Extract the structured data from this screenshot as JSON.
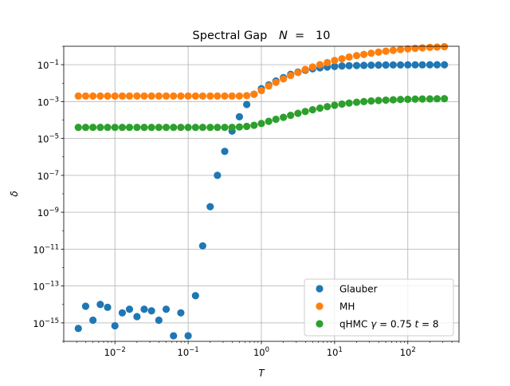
{
  "chart_data": {
    "type": "scatter",
    "title_prefix": "Spectral Gap",
    "title_var": "N",
    "title_eq": " =  ",
    "title_value": "10",
    "xlabel": "T",
    "ylabel": "δ",
    "x_scale": "log",
    "y_scale": "log",
    "xlim": [
      0.002,
      500
    ],
    "ylim": [
      1e-16,
      1
    ],
    "grid": true,
    "legend_position": "lower right",
    "x_ticks": [
      {
        "value": 0.01,
        "base": "10",
        "exp": "−2"
      },
      {
        "value": 0.1,
        "base": "10",
        "exp": "−1"
      },
      {
        "value": 1,
        "base": "10",
        "exp": "0"
      },
      {
        "value": 10,
        "base": "10",
        "exp": "1"
      },
      {
        "value": 100,
        "base": "10",
        "exp": "2"
      }
    ],
    "y_ticks": [
      {
        "value": 1e-15,
        "base": "10",
        "exp": "−15"
      },
      {
        "value": 1e-13,
        "base": "10",
        "exp": "−13"
      },
      {
        "value": 1e-11,
        "base": "10",
        "exp": "−11"
      },
      {
        "value": 1e-09,
        "base": "10",
        "exp": "−9"
      },
      {
        "value": 1e-07,
        "base": "10",
        "exp": "−7"
      },
      {
        "value": 1e-05,
        "base": "10",
        "exp": "−5"
      },
      {
        "value": 0.001,
        "base": "10",
        "exp": "−3"
      },
      {
        "value": 0.1,
        "base": "10",
        "exp": "−1"
      }
    ],
    "series": [
      {
        "name": "Glauber",
        "label_parts": [
          {
            "t": "Glauber",
            "i": false
          }
        ],
        "color": "#1f77b4",
        "points": [
          [
            0.00316,
            5e-16
          ],
          [
            0.00398,
            8e-15
          ],
          [
            0.00501,
            1.4e-15
          ],
          [
            0.00631,
            1e-14
          ],
          [
            0.00794,
            7e-15
          ],
          [
            0.01,
            7e-16
          ],
          [
            0.0126,
            3.5e-15
          ],
          [
            0.0158,
            5.5e-15
          ],
          [
            0.02,
            2.2e-15
          ],
          [
            0.0251,
            5.5e-15
          ],
          [
            0.0316,
            4.5e-15
          ],
          [
            0.0398,
            1.4e-15
          ],
          [
            0.0501,
            5.5e-15
          ],
          [
            0.0631,
            2e-16
          ],
          [
            0.0794,
            3.5e-15
          ],
          [
            0.1,
            2e-16
          ],
          [
            0.126,
            3e-14
          ],
          [
            0.158,
            1.5e-11
          ],
          [
            0.2,
            2e-09
          ],
          [
            0.251,
            1e-07
          ],
          [
            0.316,
            2e-06
          ],
          [
            0.398,
            2.5e-05
          ],
          [
            0.501,
            0.00015
          ],
          [
            0.631,
            0.0007
          ],
          [
            0.794,
            0.0025
          ],
          [
            1.0,
            0.005
          ],
          [
            1.26,
            0.008
          ],
          [
            1.58,
            0.013
          ],
          [
            2.0,
            0.02
          ],
          [
            2.51,
            0.03
          ],
          [
            3.16,
            0.04
          ],
          [
            3.98,
            0.05
          ],
          [
            5.01,
            0.06
          ],
          [
            6.31,
            0.068
          ],
          [
            7.94,
            0.075
          ],
          [
            10.0,
            0.08
          ],
          [
            12.6,
            0.085
          ],
          [
            15.8,
            0.088
          ],
          [
            20.0,
            0.09
          ],
          [
            25.1,
            0.092
          ],
          [
            31.6,
            0.094
          ],
          [
            39.8,
            0.095
          ],
          [
            50.1,
            0.096
          ],
          [
            63.1,
            0.097
          ],
          [
            79.4,
            0.097
          ],
          [
            100,
            0.098
          ],
          [
            126,
            0.098
          ],
          [
            158,
            0.098
          ],
          [
            200,
            0.099
          ],
          [
            251,
            0.099
          ],
          [
            316,
            0.099
          ]
        ]
      },
      {
        "name": "MH",
        "label_parts": [
          {
            "t": "MH",
            "i": false
          }
        ],
        "color": "#ff7f0e",
        "points": [
          [
            0.00316,
            0.002
          ],
          [
            0.00398,
            0.002
          ],
          [
            0.00501,
            0.002
          ],
          [
            0.00631,
            0.002
          ],
          [
            0.00794,
            0.002
          ],
          [
            0.01,
            0.002
          ],
          [
            0.0126,
            0.002
          ],
          [
            0.0158,
            0.002
          ],
          [
            0.02,
            0.002
          ],
          [
            0.0251,
            0.002
          ],
          [
            0.0316,
            0.002
          ],
          [
            0.0398,
            0.002
          ],
          [
            0.0501,
            0.002
          ],
          [
            0.0631,
            0.002
          ],
          [
            0.0794,
            0.002
          ],
          [
            0.1,
            0.002
          ],
          [
            0.126,
            0.002
          ],
          [
            0.158,
            0.002
          ],
          [
            0.2,
            0.002
          ],
          [
            0.251,
            0.002
          ],
          [
            0.316,
            0.002
          ],
          [
            0.398,
            0.002
          ],
          [
            0.501,
            0.002
          ],
          [
            0.631,
            0.0021
          ],
          [
            0.794,
            0.0025
          ],
          [
            1.0,
            0.004
          ],
          [
            1.26,
            0.007
          ],
          [
            1.58,
            0.011
          ],
          [
            2.0,
            0.017
          ],
          [
            2.51,
            0.026
          ],
          [
            3.16,
            0.038
          ],
          [
            3.98,
            0.055
          ],
          [
            5.01,
            0.075
          ],
          [
            6.31,
            0.1
          ],
          [
            7.94,
            0.13
          ],
          [
            10.0,
            0.17
          ],
          [
            12.6,
            0.21
          ],
          [
            15.8,
            0.26
          ],
          [
            20.0,
            0.31
          ],
          [
            25.1,
            0.36
          ],
          [
            31.6,
            0.42
          ],
          [
            39.8,
            0.48
          ],
          [
            50.1,
            0.54
          ],
          [
            63.1,
            0.6
          ],
          [
            79.4,
            0.66
          ],
          [
            100,
            0.72
          ],
          [
            126,
            0.77
          ],
          [
            158,
            0.82
          ],
          [
            200,
            0.87
          ],
          [
            251,
            0.91
          ],
          [
            316,
            0.95
          ]
        ]
      },
      {
        "name": "qHMC γ = 0.75 t = 8",
        "label_parts": [
          {
            "t": "qHMC ",
            "i": false
          },
          {
            "t": "γ",
            "i": true
          },
          {
            "t": " = 0.75 ",
            "i": false
          },
          {
            "t": "t",
            "i": true
          },
          {
            "t": " = 8",
            "i": false
          }
        ],
        "color": "#2ca02c",
        "points": [
          [
            0.00316,
            4e-05
          ],
          [
            0.00398,
            4e-05
          ],
          [
            0.00501,
            4e-05
          ],
          [
            0.00631,
            4e-05
          ],
          [
            0.00794,
            4e-05
          ],
          [
            0.01,
            4e-05
          ],
          [
            0.0126,
            4e-05
          ],
          [
            0.0158,
            4e-05
          ],
          [
            0.02,
            4e-05
          ],
          [
            0.0251,
            4e-05
          ],
          [
            0.0316,
            4e-05
          ],
          [
            0.0398,
            4e-05
          ],
          [
            0.0501,
            4e-05
          ],
          [
            0.0631,
            4e-05
          ],
          [
            0.0794,
            4e-05
          ],
          [
            0.1,
            4e-05
          ],
          [
            0.126,
            4e-05
          ],
          [
            0.158,
            4e-05
          ],
          [
            0.2,
            4e-05
          ],
          [
            0.251,
            4e-05
          ],
          [
            0.316,
            4e-05
          ],
          [
            0.398,
            4e-05
          ],
          [
            0.501,
            4.2e-05
          ],
          [
            0.631,
            4.5e-05
          ],
          [
            0.794,
            5.2e-05
          ],
          [
            1.0,
            6.5e-05
          ],
          [
            1.26,
            8.5e-05
          ],
          [
            1.58,
            0.00011
          ],
          [
            2.0,
            0.00014
          ],
          [
            2.51,
            0.00018
          ],
          [
            3.16,
            0.00023
          ],
          [
            3.98,
            0.00029
          ],
          [
            5.01,
            0.00036
          ],
          [
            6.31,
            0.00044
          ],
          [
            7.94,
            0.00053
          ],
          [
            10.0,
            0.00063
          ],
          [
            12.6,
            0.00073
          ],
          [
            15.8,
            0.00083
          ],
          [
            20.0,
            0.00092
          ],
          [
            25.1,
            0.001
          ],
          [
            31.6,
            0.00108
          ],
          [
            39.8,
            0.00115
          ],
          [
            50.1,
            0.0012
          ],
          [
            63.1,
            0.00125
          ],
          [
            79.4,
            0.0013
          ],
          [
            100,
            0.00133
          ],
          [
            126,
            0.00136
          ],
          [
            158,
            0.00138
          ],
          [
            200,
            0.0014
          ],
          [
            251,
            0.00142
          ],
          [
            316,
            0.00143
          ]
        ]
      }
    ]
  }
}
